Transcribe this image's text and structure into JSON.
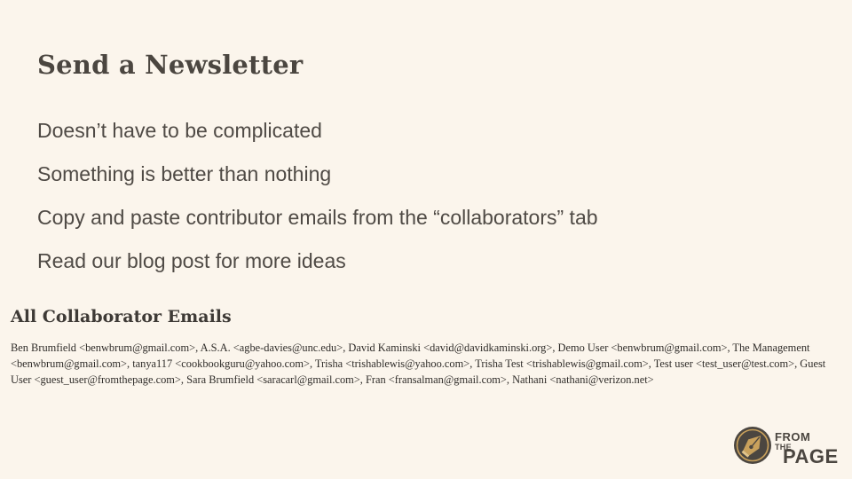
{
  "slide": {
    "title": "Send a Newsletter",
    "bullets": [
      "Doesn’t have to be complicated",
      "Something is better than nothing",
      "Copy and paste contributor emails from the “collaborators” tab",
      "Read our blog post for more ideas"
    ]
  },
  "collaborators": {
    "heading": "All Collaborator Emails",
    "emails_text": "Ben Brumfield <benwbrum@gmail.com>, A.S.A. <agbe-davies@unc.edu>, David Kaminski <david@davidkaminski.org>, Demo User <benwbrum@gmail.com>, The Management <benwbrum@gmail.com>, tanya117 <cookbookguru@yahoo.com>, Trisha <trishablewis@yahoo.com>, Trisha Test <trishablewis@gmail.com>, Test user <test_user@test.com>, Guest User <guest_user@fromthepage.com>, Sara Brumfield <saracarl@gmail.com>, Fran <fransalman@gmail.com>, Nathani <nathani@verizon.net>"
  },
  "logo": {
    "line1": "FROM",
    "line2": "THE",
    "line3": "PAGE",
    "icon": "fountain-pen-nib-icon",
    "colors": {
      "badge": "#4b4640",
      "nib": "#c9a15c"
    }
  }
}
